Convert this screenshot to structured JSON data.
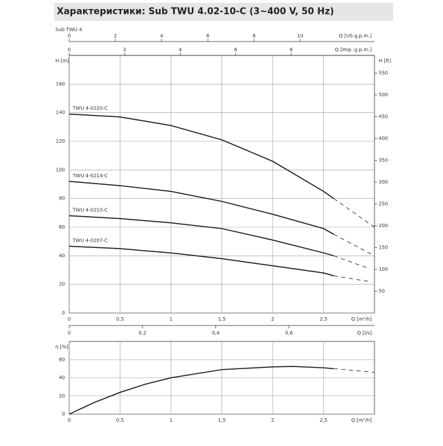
{
  "chart_data": [
    {
      "type": "line",
      "title": "Характеристики: Sub TWU 4.02-10-C (3~400 V, 50 Hz)",
      "subtitle": "Sub TWU 4",
      "x_label": "Q [m³/h]",
      "y_label": "H [m]",
      "y2_label": "H [ft]",
      "xlim": [
        0,
        3
      ],
      "xticks": [
        0,
        {
          "value": 0.5,
          "label": "0,5"
        },
        1,
        {
          "value": 1.5,
          "label": "1,5"
        },
        2,
        {
          "value": 2.5,
          "label": "2,5"
        }
      ],
      "ylim": [
        0,
        180
      ],
      "yticks": [
        0,
        20,
        40,
        60,
        80,
        100,
        120,
        140,
        160
      ],
      "y2lim": [
        0,
        590.55
      ],
      "y2ticks": [
        50,
        100,
        150,
        200,
        250,
        300,
        350,
        400,
        450,
        500,
        550
      ],
      "grid": true,
      "color": "#1a1a1a",
      "extra_x_axes": [
        {
          "label": "Q [US g.p.m.]",
          "lim": [
            0,
            13.21
          ],
          "ticks": [
            0,
            2,
            4,
            6,
            8,
            10
          ]
        },
        {
          "label": "Q [Imp. g.p.m.]",
          "lim": [
            0,
            11
          ],
          "ticks": [
            0,
            2,
            4,
            6,
            8
          ]
        },
        {
          "label": "Q [l/s]",
          "lim": [
            0,
            0.8333
          ],
          "ticks": [
            0,
            {
              "value": 0.2,
              "label": "0,2"
            },
            {
              "value": 0.4,
              "label": "0,4"
            },
            {
              "value": 0.6,
              "label": "0,6"
            }
          ]
        }
      ],
      "series": [
        {
          "name": "TWU 4-0220-C",
          "x": [
            0,
            0.5,
            1,
            1.5,
            2,
            2.5,
            2.6
          ],
          "values": [
            139,
            137,
            131,
            121,
            106,
            85,
            80
          ],
          "dashed_x": [
            2.6,
            3
          ],
          "dashed_values": [
            80,
            60
          ]
        },
        {
          "name": "TWU 4-0214-C",
          "x": [
            0,
            0.5,
            1,
            1.5,
            2,
            2.5,
            2.6
          ],
          "values": [
            92,
            89,
            85,
            78,
            69,
            59,
            55
          ],
          "dashed_x": [
            2.6,
            3
          ],
          "dashed_values": [
            55,
            40
          ]
        },
        {
          "name": "TWU 4-0210-C",
          "x": [
            0,
            0.5,
            1,
            1.5,
            2,
            2.5,
            2.6
          ],
          "values": [
            68,
            66,
            63,
            59,
            51,
            42,
            40
          ],
          "dashed_x": [
            2.6,
            2.95
          ],
          "dashed_values": [
            40,
            31
          ]
        },
        {
          "name": "TWU 4-0207-C",
          "x": [
            0,
            0.5,
            1,
            1.5,
            2,
            2.5,
            2.6
          ],
          "values": [
            46.7,
            45,
            42,
            38,
            33,
            28,
            26
          ],
          "dashed_x": [
            2.6,
            2.95
          ],
          "dashed_values": [
            26,
            22
          ]
        }
      ]
    },
    {
      "type": "line",
      "x_label": "Q [m³/h]",
      "y_label": "η [%]",
      "xlim": [
        0,
        3
      ],
      "xticks": [
        0,
        {
          "value": 0.5,
          "label": "0,5"
        },
        1,
        {
          "value": 1.5,
          "label": "1,5"
        },
        2,
        {
          "value": 2.5,
          "label": "2,5"
        }
      ],
      "ylim": [
        0,
        80
      ],
      "yticks": [
        0,
        20,
        40,
        60
      ],
      "grid": true,
      "color": "#1a1a1a",
      "series": [
        {
          "x": [
            0,
            0.25,
            0.5,
            0.75,
            1,
            1.5,
            2,
            2.2,
            2.5,
            2.6
          ],
          "values": [
            0,
            13,
            24,
            33,
            40,
            49,
            52,
            52.5,
            51,
            50
          ],
          "dashed_x": [
            2.6,
            3
          ],
          "dashed_values": [
            50,
            46
          ]
        }
      ]
    }
  ]
}
